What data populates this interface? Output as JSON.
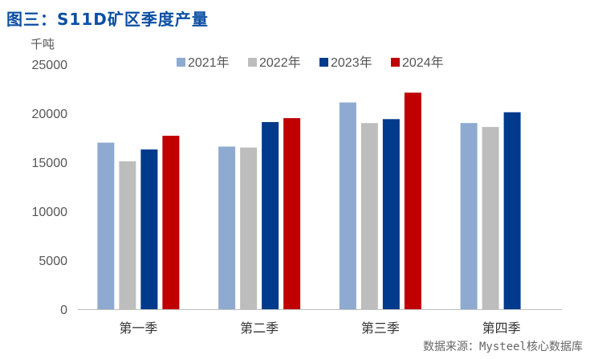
{
  "title": "图三：S11D矿区季度产量",
  "unit": "千吨",
  "source": "数据来源：Mysteel核心数据库",
  "chart_data": {
    "type": "bar",
    "categories": [
      "第一季",
      "第二季",
      "第三季",
      "第四季"
    ],
    "ylim": [
      0,
      25000
    ],
    "yticks": [
      0,
      5000,
      10000,
      15000,
      20000,
      25000
    ],
    "legend_position": "top",
    "grid": false,
    "series": [
      {
        "name": "2021年",
        "color": "#8eaad0",
        "values": [
          17000,
          16600,
          21100,
          19000
        ]
      },
      {
        "name": "2022年",
        "color": "#bdbdbd",
        "values": [
          15100,
          16500,
          19000,
          18600
        ]
      },
      {
        "name": "2023年",
        "color": "#003a8c",
        "values": [
          16300,
          19100,
          19400,
          20100
        ]
      },
      {
        "name": "2024年",
        "color": "#c00000",
        "values": [
          17700,
          19500,
          22100,
          null
        ]
      }
    ]
  }
}
